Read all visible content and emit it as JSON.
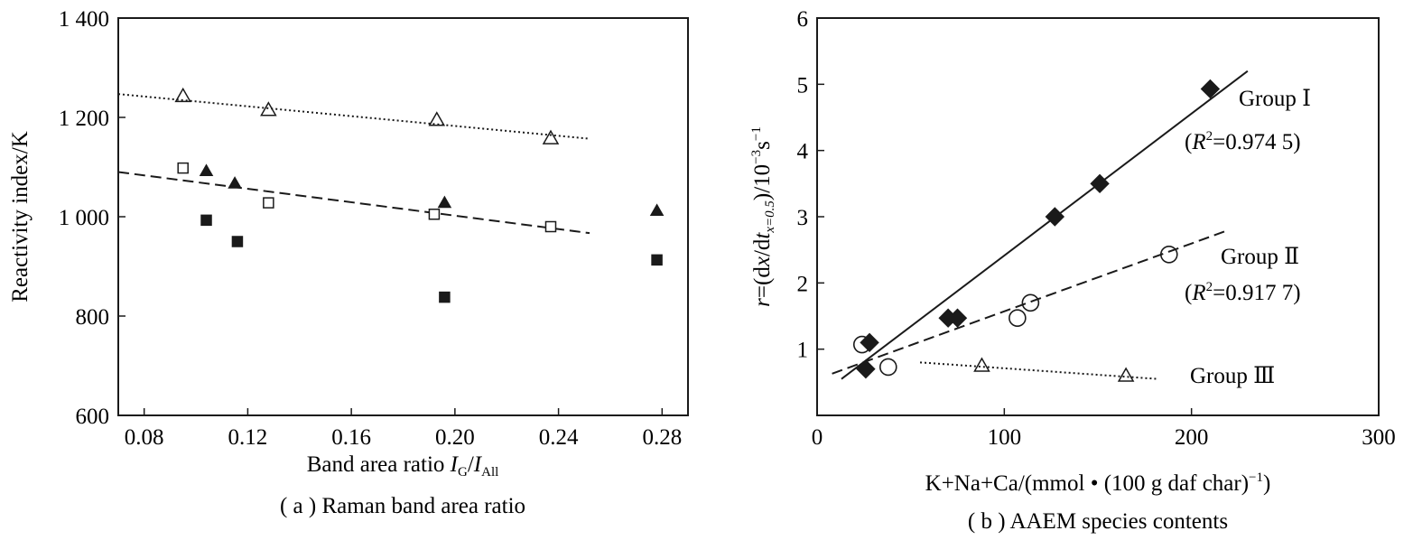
{
  "chart_data": [
    {
      "id": "a",
      "type": "scatter",
      "caption": "( a ) Raman band area ratio",
      "xlabel_main": "Band area ratio ",
      "xlabel_I1": "I",
      "xlabel_sub1": "G",
      "xlabel_slash": "/",
      "xlabel_I2": "I",
      "xlabel_sub2": "All",
      "ylabel": "Reactivity index/K",
      "xlim": [
        0.07,
        0.29
      ],
      "ylim": [
        600,
        1400
      ],
      "xticks": [
        0.08,
        0.12,
        0.16,
        0.2,
        0.24,
        0.28
      ],
      "xtick_labels": [
        "0.08",
        "0.12",
        "0.16",
        "0.20",
        "0.24",
        "0.28"
      ],
      "yticks": [
        600,
        800,
        1000,
        1200,
        1400
      ],
      "ytick_labels": [
        "600",
        "800",
        "1 000",
        "1 200",
        "1 400"
      ],
      "series": [
        {
          "marker": "triangle-open",
          "points": [
            [
              0.095,
              1243
            ],
            [
              0.128,
              1215
            ],
            [
              0.193,
              1195
            ],
            [
              0.237,
              1158
            ]
          ]
        },
        {
          "marker": "square-open",
          "points": [
            [
              0.095,
              1098
            ],
            [
              0.128,
              1028
            ],
            [
              0.192,
              1005
            ],
            [
              0.237,
              980
            ]
          ]
        },
        {
          "marker": "triangle-filled",
          "points": [
            [
              0.104,
              1092
            ],
            [
              0.115,
              1067
            ],
            [
              0.196,
              1028
            ],
            [
              0.278,
              1012
            ]
          ]
        },
        {
          "marker": "square-filled",
          "points": [
            [
              0.104,
              993
            ],
            [
              0.116,
              950
            ],
            [
              0.196,
              838
            ],
            [
              0.278,
              913
            ]
          ]
        }
      ],
      "fits": [
        {
          "style": "dotted",
          "from": [
            0.07,
            1247
          ],
          "to": [
            0.252,
            1157
          ]
        },
        {
          "style": "dashed",
          "from": [
            0.07,
            1090
          ],
          "to": [
            0.252,
            967
          ]
        }
      ]
    },
    {
      "id": "b",
      "type": "scatter",
      "caption": "( b ) AAEM species contents",
      "xlabel": "K+Na+Ca/(mmol • (100 g daf char)",
      "xlabel_sup": "−1",
      "xlabel_end": ")",
      "ylabel_r": "r",
      "ylabel_eq": "=(d",
      "ylabel_x": "x",
      "ylabel_d2": "/d",
      "ylabel_t": "t",
      "ylabel_sub": "x=0.5",
      "ylabel_mid": ")/10",
      "ylabel_sup1": "−3",
      "ylabel_s": "s",
      "ylabel_sup2": "−1",
      "xlim": [
        0,
        300
      ],
      "ylim": [
        0,
        6
      ],
      "xticks": [
        0,
        100,
        200,
        300
      ],
      "xtick_labels": [
        "0",
        "100",
        "200",
        "300"
      ],
      "yticks": [
        1,
        2,
        3,
        4,
        5,
        6
      ],
      "ytick_labels": [
        "1",
        "2",
        "3",
        "4",
        "5",
        "6"
      ],
      "series": [
        {
          "marker": "diamond-filled",
          "label": "Group Ⅰ",
          "r2_prefix": "(",
          "r2_R": "R",
          "r2_sup": "2",
          "r2_value": "=0.974 5)",
          "points": [
            [
              26,
              0.7
            ],
            [
              28,
              1.1
            ],
            [
              70,
              1.47
            ],
            [
              75,
              1.47
            ],
            [
              127,
              3.0
            ],
            [
              151,
              3.5
            ],
            [
              210,
              4.93
            ]
          ]
        },
        {
          "marker": "circle-open",
          "label": "Group Ⅱ",
          "r2_prefix": "(",
          "r2_R": "R",
          "r2_sup": "2",
          "r2_value": "=0.917 7)",
          "points": [
            [
              24,
              1.07
            ],
            [
              38,
              0.73
            ],
            [
              107,
              1.47
            ],
            [
              114,
              1.7
            ],
            [
              188,
              2.43
            ]
          ]
        },
        {
          "marker": "triangle-open",
          "label": "Group Ⅲ",
          "points": [
            [
              88,
              0.75
            ],
            [
              165,
              0.6
            ]
          ]
        }
      ],
      "fits": [
        {
          "style": "solid",
          "from": [
            13,
            0.55
          ],
          "to": [
            230,
            5.2
          ]
        },
        {
          "style": "dashed",
          "from": [
            8,
            0.63
          ],
          "to": [
            218,
            2.78
          ]
        },
        {
          "style": "dotted",
          "from": [
            55,
            0.8
          ],
          "to": [
            182,
            0.55
          ]
        }
      ]
    }
  ]
}
